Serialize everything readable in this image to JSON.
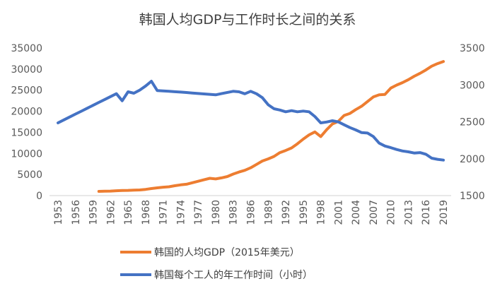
{
  "chart_data": {
    "type": "line",
    "title": "韩国人均GDP与工作时长之间的关系",
    "x": [
      1953,
      1954,
      1955,
      1956,
      1957,
      1958,
      1959,
      1960,
      1961,
      1962,
      1963,
      1964,
      1965,
      1966,
      1967,
      1968,
      1969,
      1970,
      1971,
      1972,
      1973,
      1974,
      1975,
      1976,
      1977,
      1978,
      1979,
      1980,
      1981,
      1982,
      1983,
      1984,
      1985,
      1986,
      1987,
      1988,
      1989,
      1990,
      1991,
      1992,
      1993,
      1994,
      1995,
      1996,
      1997,
      1998,
      1999,
      2000,
      2001,
      2002,
      2003,
      2004,
      2005,
      2006,
      2007,
      2008,
      2009,
      2010,
      2011,
      2012,
      2013,
      2014,
      2015,
      2016,
      2017,
      2018,
      2019
    ],
    "x_tick_labels": [
      "1953",
      "1956",
      "1959",
      "1962",
      "1965",
      "1968",
      "1971",
      "1974",
      "1977",
      "1980",
      "1983",
      "1986",
      "1989",
      "1992",
      "1995",
      "1998",
      "2001",
      "2004",
      "2007",
      "2010",
      "2013",
      "2016",
      "2019"
    ],
    "y_left": {
      "range": [
        0,
        35000
      ],
      "ticks": [
        "0",
        "5000",
        "10000",
        "15000",
        "20000",
        "25000",
        "30000",
        "35000"
      ]
    },
    "y_right": {
      "range": [
        1500,
        3500
      ],
      "ticks": [
        "1500",
        "2000",
        "2500",
        "3000",
        "3500"
      ]
    },
    "grid": false,
    "legend_position": "bottom",
    "series": [
      {
        "name": "韩国的人均GDP（2015年美元）",
        "axis": "left",
        "color": "#ED7D31",
        "values": [
          null,
          null,
          null,
          null,
          null,
          null,
          null,
          1005,
          1050,
          1080,
          1150,
          1200,
          1240,
          1300,
          1340,
          1480,
          1680,
          1850,
          2000,
          2100,
          2350,
          2550,
          2700,
          3050,
          3400,
          3750,
          4100,
          3950,
          4200,
          4520,
          5100,
          5600,
          6000,
          6600,
          7400,
          8200,
          8700,
          9300,
          10200,
          10700,
          11300,
          12300,
          13400,
          14400,
          15100,
          14000,
          15600,
          17000,
          17600,
          19000,
          19500,
          20400,
          21200,
          22300,
          23400,
          23900,
          24000,
          25500,
          26200,
          26800,
          27500,
          28300,
          29000,
          29800,
          30700,
          31300,
          31800
        ]
      },
      {
        "name": "韩国每个工人的年工作时间（小时）",
        "axis": "right",
        "color": "#4472C4",
        "values": [
          2486,
          2526,
          2565,
          2605,
          2644,
          2684,
          2723,
          2763,
          2802,
          2842,
          2881,
          2785,
          2907,
          2888,
          2930,
          2985,
          3050,
          2923,
          2918,
          2913,
          2908,
          2903,
          2897,
          2890,
          2884,
          2878,
          2872,
          2866,
          2882,
          2898,
          2913,
          2907,
          2880,
          2913,
          2880,
          2827,
          2731,
          2677,
          2660,
          2636,
          2651,
          2636,
          2645,
          2636,
          2572,
          2486,
          2497,
          2514,
          2499,
          2460,
          2422,
          2390,
          2354,
          2348,
          2301,
          2211,
          2172,
          2150,
          2125,
          2105,
          2093,
          2077,
          2083,
          2061,
          2007,
          1992,
          1981
        ]
      }
    ]
  }
}
